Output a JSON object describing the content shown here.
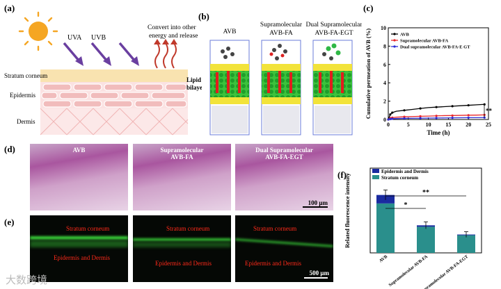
{
  "panels": {
    "a": "(a)",
    "b": "(b)",
    "c": "(c)",
    "d": "(d)",
    "e": "(e)",
    "f": "(f)"
  },
  "panel_a": {
    "uva": "UVA",
    "uvb": "UVB",
    "convert_line1": "Convert into other",
    "convert_line2": "energy and release",
    "stratum": "Stratum corneum",
    "epidermis": "Epidermis",
    "dermis": "Dermis",
    "lipid_line1": "Lipid",
    "lipid_line2": "bilayer",
    "colors": {
      "sun": "#f5a623",
      "arrow": "#6a3fa0",
      "heat": "#c0392b",
      "stratum": "#f9e3b0",
      "epi": "#f4cccc",
      "derm": "#fbe4e4"
    }
  },
  "panel_b": {
    "labels": [
      {
        "l1": "AVB",
        "l2": ""
      },
      {
        "l1": "Supramolecular",
        "l2": "AVB-FA"
      },
      {
        "l1": "Dual Supramolecular",
        "l2": "AVB-FA-EGT"
      }
    ]
  },
  "chart_data": [
    {
      "type": "line",
      "xlabel": "Time (h)",
      "ylabel": "Cumulative permeation of AVB (%)",
      "xlim": [
        0,
        25
      ],
      "ylim": [
        0,
        10
      ],
      "xticks": [
        0,
        5,
        10,
        15,
        20,
        25
      ],
      "yticks": [
        0,
        2,
        4,
        6,
        8,
        10
      ],
      "significance": "**",
      "legend_position": "top-left",
      "x": [
        0,
        0.5,
        1,
        2,
        4,
        6,
        8,
        10,
        12,
        14,
        16,
        18,
        20,
        22,
        24
      ],
      "series": [
        {
          "name": "AVB",
          "color": "#000000",
          "values": [
            0,
            0.55,
            0.75,
            0.9,
            1.0,
            1.1,
            1.2,
            1.3,
            1.35,
            1.4,
            1.45,
            1.5,
            1.55,
            1.6,
            1.65
          ]
        },
        {
          "name": "Supramolecular AVB-FA",
          "color": "#e8262a",
          "values": [
            0,
            0.15,
            0.2,
            0.25,
            0.3,
            0.32,
            0.35,
            0.37,
            0.4,
            0.42,
            0.43,
            0.45,
            0.47,
            0.48,
            0.5
          ]
        },
        {
          "name": "Dual supramolecular AVB-FA-E GT",
          "color": "#2c2cd6",
          "values": [
            0,
            0.05,
            0.08,
            0.1,
            0.12,
            0.13,
            0.14,
            0.15,
            0.16,
            0.17,
            0.18,
            0.19,
            0.2,
            0.2,
            0.21
          ]
        }
      ]
    },
    {
      "type": "bar",
      "ylabel": "Related fluorescence intensity",
      "ylim": [
        0,
        6
      ],
      "categories": [
        "AVB",
        "Supramolecular AVB-FA",
        "Dual Supramolecular AVB-FA-EGT"
      ],
      "series": [
        {
          "name": "Epidermis and Dermis",
          "color": "#1a2ba0",
          "values": [
            0.6,
            0.1,
            0.05
          ]
        },
        {
          "name": "Stratum corneum",
          "color": "#2a8f8c",
          "values": [
            3.5,
            1.85,
            1.25
          ]
        }
      ],
      "errors": [
        0.35,
        0.25,
        0.2
      ],
      "significance": [
        {
          "label": "*",
          "from": 0,
          "to": 1
        },
        {
          "label": "**",
          "from": 0,
          "to": 2
        }
      ],
      "legend_position": "top-left"
    }
  ],
  "panel_d": {
    "titles": [
      {
        "l1": "AVB",
        "l2": ""
      },
      {
        "l1": "Supramolecular",
        "l2": "AVB-FA"
      },
      {
        "l1": "Dual Supramolecular",
        "l2": "AVB-FA-EGT"
      }
    ],
    "scalebar": "100 μm"
  },
  "panel_e": {
    "stratum": "Stratum corneum",
    "epidermis": "Epidermis and Dermis",
    "scalebar": "500 μm"
  },
  "watermark": "大数跨境"
}
